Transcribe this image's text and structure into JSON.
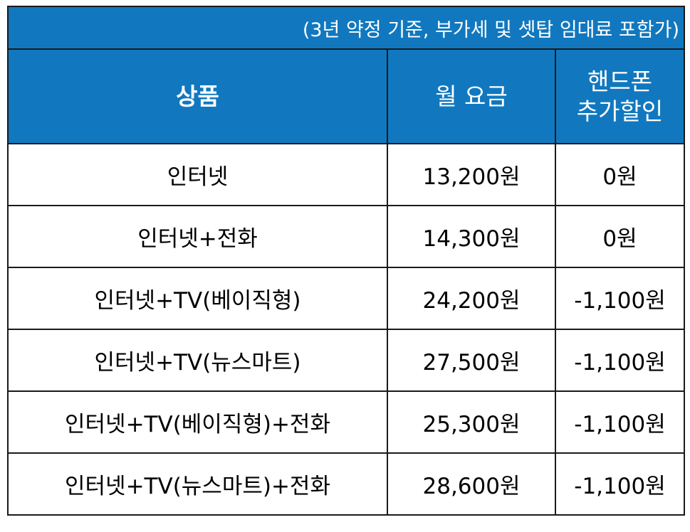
{
  "note": "(3년 약정 기준, 부가세 및 셋탑 임대료 포함가)",
  "headers": {
    "product": "상품",
    "monthly_fee": "월 요금",
    "phone_discount_line1": "핸드폰",
    "phone_discount_line2": "추가할인"
  },
  "rows": [
    {
      "product": "인터넷",
      "fee": "13,200원",
      "discount": "0원"
    },
    {
      "product": "인터넷+전화",
      "fee": "14,300원",
      "discount": "0원"
    },
    {
      "product": "인터넷+TV(베이직형)",
      "fee": "24,200원",
      "discount": "-1,100원"
    },
    {
      "product": "인터넷+TV(뉴스마트)",
      "fee": "27,500원",
      "discount": "-1,100원"
    },
    {
      "product": "인터넷+TV(베이직형)+전화",
      "fee": "25,300원",
      "discount": "-1,100원"
    },
    {
      "product": "인터넷+TV(뉴스마트)+전화",
      "fee": "28,600원",
      "discount": "-1,100원"
    }
  ],
  "colors": {
    "header_bg": "#1178bf",
    "header_text": "#ffffff",
    "border": "#1a1a1a"
  }
}
